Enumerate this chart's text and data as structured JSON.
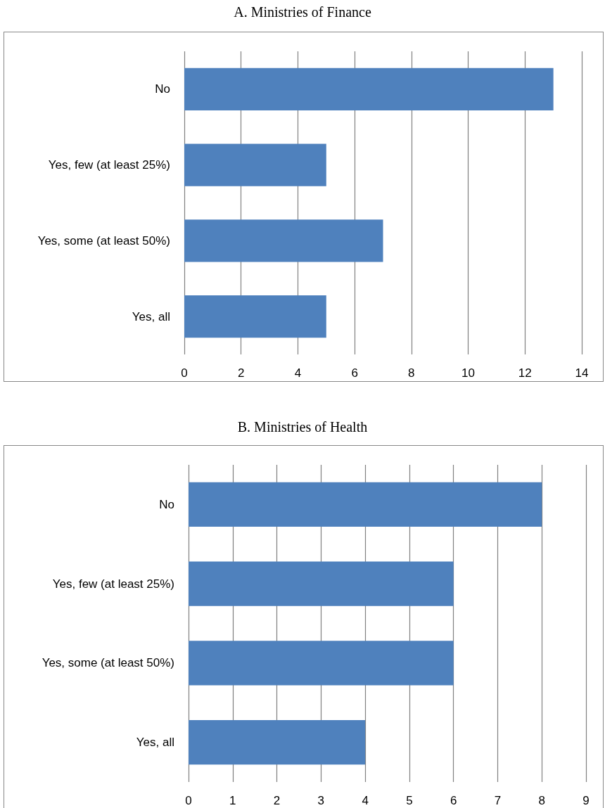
{
  "chart_data": [
    {
      "type": "bar",
      "title": "A. Ministries of Finance",
      "orientation": "horizontal",
      "categories": [
        "No",
        "Yes, few (at least 25%)",
        "Yes, some (at least 50%)",
        "Yes, all"
      ],
      "series": [
        {
          "color": "#4f81bd",
          "values": [
            13,
            5,
            7,
            5
          ]
        }
      ],
      "xlim": [
        0,
        14
      ],
      "xticks": [
        0,
        2,
        4,
        6,
        8,
        10,
        12,
        14
      ],
      "grid": "x"
    },
    {
      "type": "bar",
      "title": "B. Ministries of Health",
      "orientation": "horizontal",
      "categories": [
        "No",
        "Yes, few (at least 25%)",
        "Yes, some (at least 50%)",
        "Yes, all"
      ],
      "series": [
        {
          "color": "#4f81bd",
          "values": [
            8,
            6,
            6,
            4
          ]
        }
      ],
      "xlim": [
        0,
        9
      ],
      "xticks": [
        0,
        1,
        2,
        3,
        4,
        5,
        6,
        7,
        8,
        9
      ],
      "grid": "x"
    }
  ]
}
